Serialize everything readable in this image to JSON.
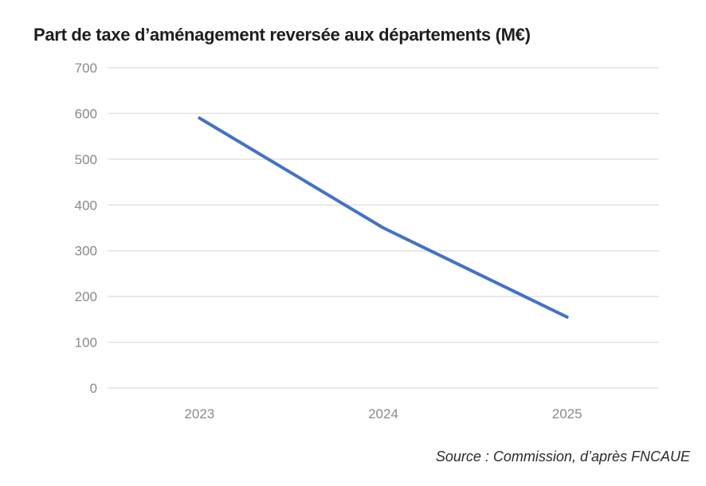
{
  "title": "Part de taxe d’aménagement reversée aux départements (M€)",
  "source": "Source : Commission, d’après FNCAUE",
  "colors": {
    "line": "#4472C4",
    "grid": "#e2e2e2",
    "tick_label": "#8a8a8a",
    "title_text": "#1e1e1e",
    "source_text": "#2b2b2b",
    "background": "#ffffff"
  },
  "chart_data": {
    "type": "line",
    "title": "Part de taxe d’aménagement reversée aux départements (M€)",
    "categories": [
      "2023",
      "2024",
      "2025"
    ],
    "values": [
      590,
      350,
      155
    ],
    "xlabel": "",
    "ylabel": "",
    "ylim": [
      0,
      700
    ],
    "yticks": [
      0,
      100,
      200,
      300,
      400,
      500,
      600,
      700
    ],
    "grid": "horizontal",
    "legend": "none",
    "source": "Source : Commission, d’après FNCAUE"
  }
}
